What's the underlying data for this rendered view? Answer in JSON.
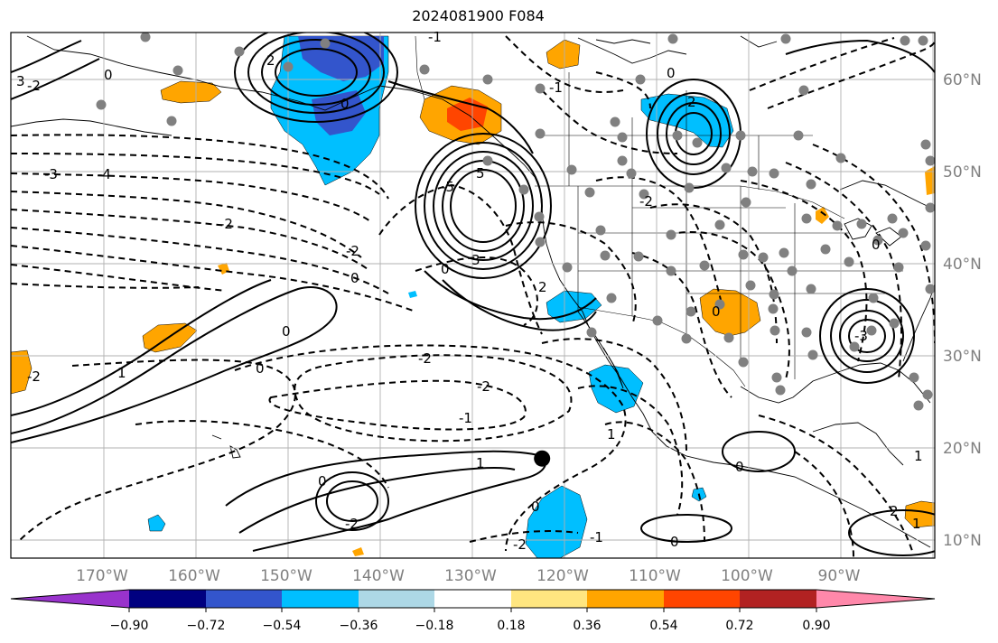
{
  "title": "2024081900 F084",
  "map": {
    "extent": {
      "lon_min": -180,
      "lon_max": -80,
      "lat_min": 8,
      "lat_max": 65
    },
    "meridians": [
      -170,
      -160,
      -150,
      -140,
      -130,
      -120,
      -110,
      -100,
      -90,
      -80
    ],
    "parallels": [
      10,
      20,
      30,
      40,
      50,
      60
    ],
    "lon_labels": [
      "170°W",
      "160°W",
      "150°W",
      "140°W",
      "130°W",
      "120°W",
      "110°W",
      "100°W",
      "90°W"
    ],
    "lat_labels": [
      "10°N",
      "20°N",
      "30°N",
      "40°N",
      "50°N",
      "60°N"
    ],
    "marker": {
      "lon": -122.5,
      "lat": 18.8
    },
    "contour_labels": [
      "-3",
      "-4",
      "-2",
      "-2",
      "0",
      "0",
      "1",
      "0",
      "-2",
      "-2",
      "-1",
      "1",
      "0",
      "-2",
      "0",
      "-2",
      "2",
      "-1",
      "0",
      "-2",
      "0",
      "-1",
      "-5",
      "5",
      "3",
      "0",
      "2",
      "2",
      "0",
      "-2",
      "0",
      "0",
      "1",
      "-1",
      "0",
      "-3",
      "0",
      "1",
      "-2",
      "1",
      "3",
      "2"
    ]
  },
  "colorbar": {
    "colors": [
      "#9933cc",
      "#000080",
      "#3355cc",
      "#00bfff",
      "#add8e6",
      "#ffffff",
      "#ffe680",
      "#ffa500",
      "#ff4500",
      "#b22222",
      "#ff88aa"
    ],
    "tick_labels": [
      "−0.90",
      "−0.72",
      "−0.54",
      "−0.36",
      "−0.18",
      "0.18",
      "0.36",
      "0.54",
      "0.72",
      "0.90"
    ]
  }
}
